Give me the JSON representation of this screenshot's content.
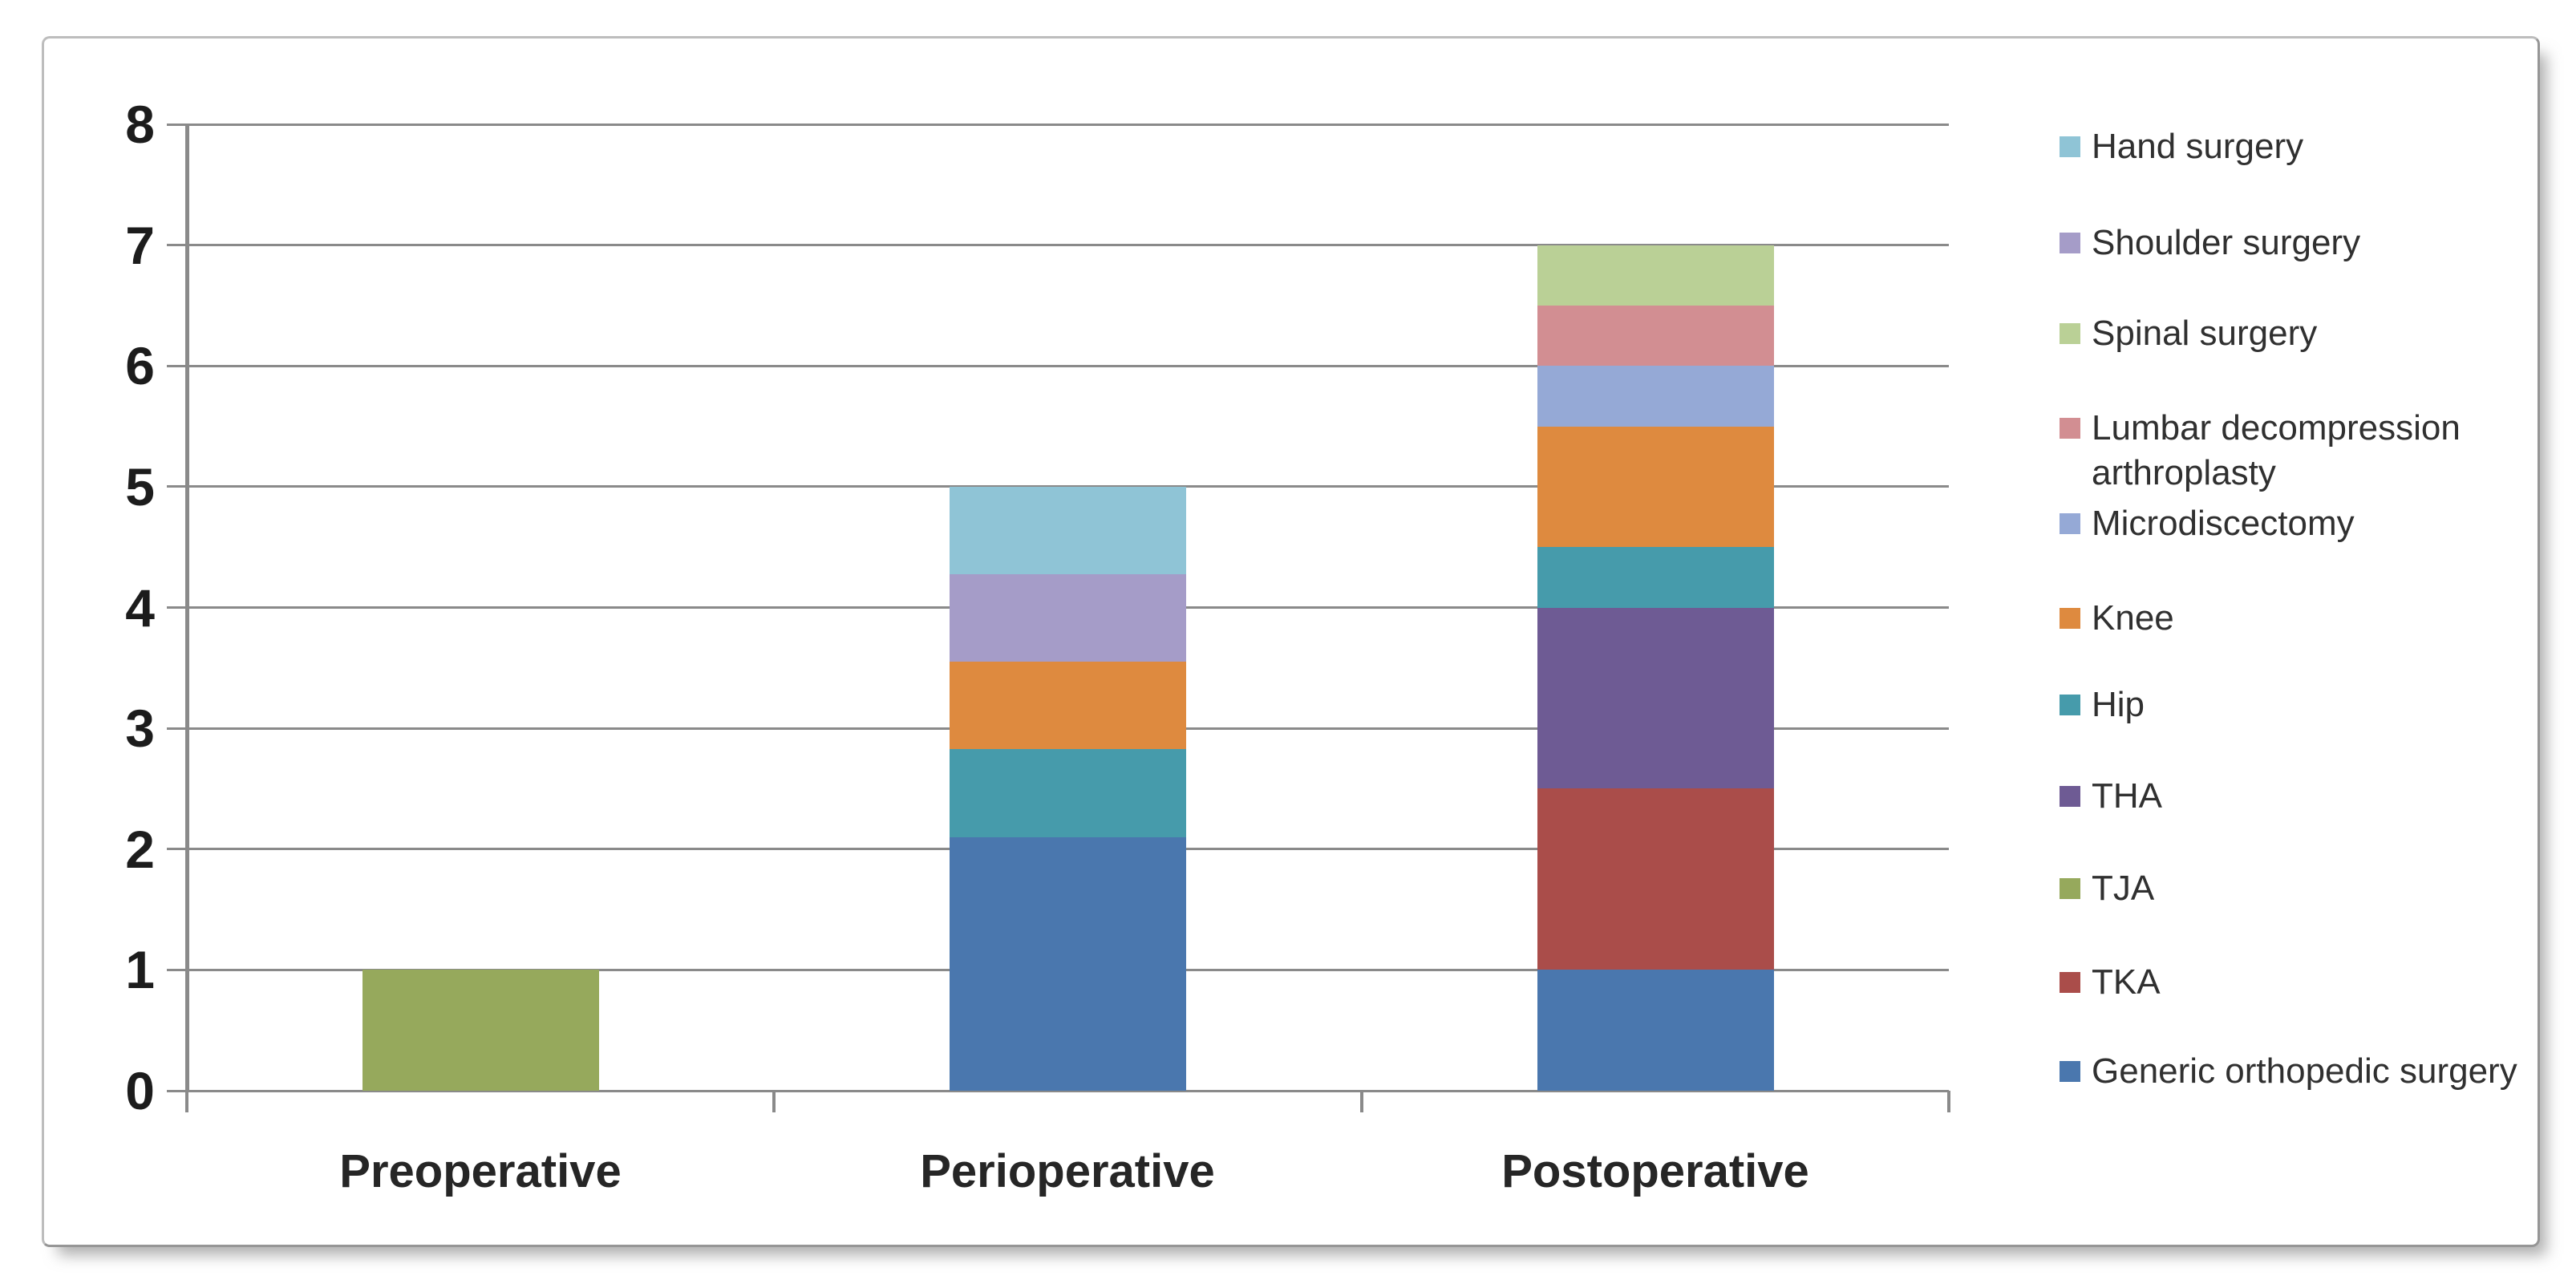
{
  "chart_data": {
    "type": "bar",
    "stacked": true,
    "title": "",
    "xlabel": "",
    "ylabel": "",
    "categories": [
      "Preoperative",
      "Perioperative",
      "Postoperative"
    ],
    "ylim": [
      0,
      8
    ],
    "yticks": [
      "8",
      "7",
      "6",
      "5",
      "4",
      "3",
      "2",
      "1",
      "0"
    ],
    "grid": "horizontal",
    "legend_position": "right",
    "series": [
      {
        "name": "Generic orthopedic surgery",
        "color": "#4A77AE",
        "values": [
          0,
          2.1,
          1
        ]
      },
      {
        "name": "TKA",
        "color": "#AA4D4A",
        "values": [
          0,
          0,
          1.5
        ]
      },
      {
        "name": "TJA",
        "color": "#96A95C",
        "values": [
          1,
          0,
          0
        ]
      },
      {
        "name": "THA",
        "color": "#6E5B94",
        "values": [
          0,
          0,
          1.5
        ]
      },
      {
        "name": "Hip",
        "color": "#469BAB",
        "values": [
          0,
          0.725,
          0.5
        ]
      },
      {
        "name": "Knee",
        "color": "#DE8A3F",
        "values": [
          0,
          0.725,
          1
        ]
      },
      {
        "name": "Microdiscectomy",
        "color": "#95A9D6",
        "values": [
          0,
          0,
          0.5
        ]
      },
      {
        "name": "Lumbar decompression arthroplasty",
        "color": "#D28E92",
        "values": [
          0,
          0,
          0.5
        ]
      },
      {
        "name": "Spinal surgery",
        "color": "#BAD096",
        "values": [
          0,
          0,
          0.5
        ]
      },
      {
        "name": "Shoulder surgery",
        "color": "#A59CC8",
        "values": [
          0,
          0.725,
          0
        ]
      },
      {
        "name": "Hand surgery",
        "color": "#8FC4D6",
        "values": [
          0,
          0.725,
          0
        ]
      }
    ],
    "legend": [
      {
        "label": "Hand surgery",
        "color": "#8FC4D6"
      },
      {
        "label": "Shoulder surgery",
        "color": "#A59CC8"
      },
      {
        "label": "Spinal surgery",
        "color": "#BAD096"
      },
      {
        "label": "Lumbar decompression arthroplasty",
        "color": "#D28E92"
      },
      {
        "label": "Microdiscectomy",
        "color": "#95A9D6"
      },
      {
        "label": "Knee",
        "color": "#DE8A3F"
      },
      {
        "label": "Hip",
        "color": "#469BAB"
      },
      {
        "label": "THA",
        "color": "#6E5B94"
      },
      {
        "label": "TJA",
        "color": "#96A95C"
      },
      {
        "label": "TKA",
        "color": "#AA4D4A"
      },
      {
        "label": "Generic orthopedic surgery",
        "color": "#4A77AE"
      }
    ],
    "colors": {
      "gridline": "#8a8a8a",
      "axis": "#8a8a8a",
      "tick_label_text": "#1c1c1c",
      "category_label_text": "#262626",
      "legend_text": "#303030",
      "figure_background": "#ffffff"
    }
  }
}
